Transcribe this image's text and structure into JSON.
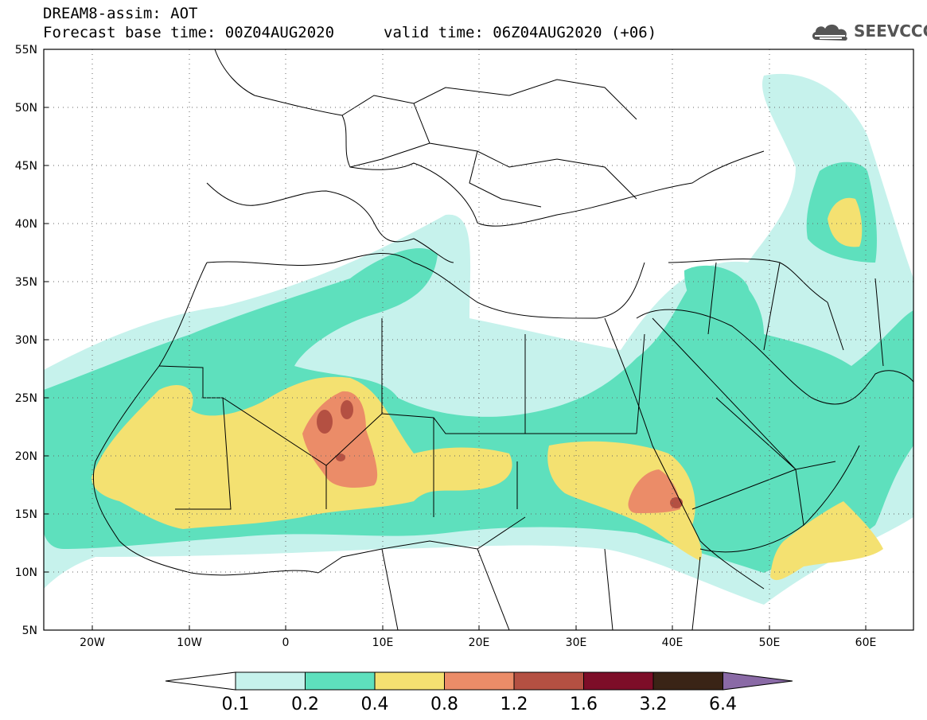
{
  "header": {
    "title_line1": "DREAM8-assim: AOT",
    "title_line2": "Forecast base time: 00Z04AUG2020",
    "valid": "valid time: 06Z04AUG2020 (+06)",
    "logo_text": "SEEVCCC",
    "logo_icon": "cloud-icon"
  },
  "map": {
    "lon_labels": [
      "20W",
      "10W",
      "0",
      "10E",
      "20E",
      "30E",
      "40E",
      "50E",
      "60E"
    ],
    "lat_labels": [
      "55N",
      "50N",
      "45N",
      "40N",
      "35N",
      "30N",
      "25N",
      "20N",
      "15N",
      "10N",
      "5N"
    ],
    "lon_range": [
      -25,
      65
    ],
    "lat_range": [
      5,
      55
    ],
    "gridlines": "dotted"
  },
  "colorbar": {
    "labels": [
      "0.1",
      "0.2",
      "0.4",
      "0.8",
      "1.2",
      "1.6",
      "3.2",
      "6.4"
    ],
    "colors": [
      "#ffffff",
      "#c6f2ec",
      "#5ee0bd",
      "#f4e171",
      "#eb8c68",
      "#b45042",
      "#7d0d28",
      "#3a2416",
      "#8a6aa6"
    ]
  }
}
